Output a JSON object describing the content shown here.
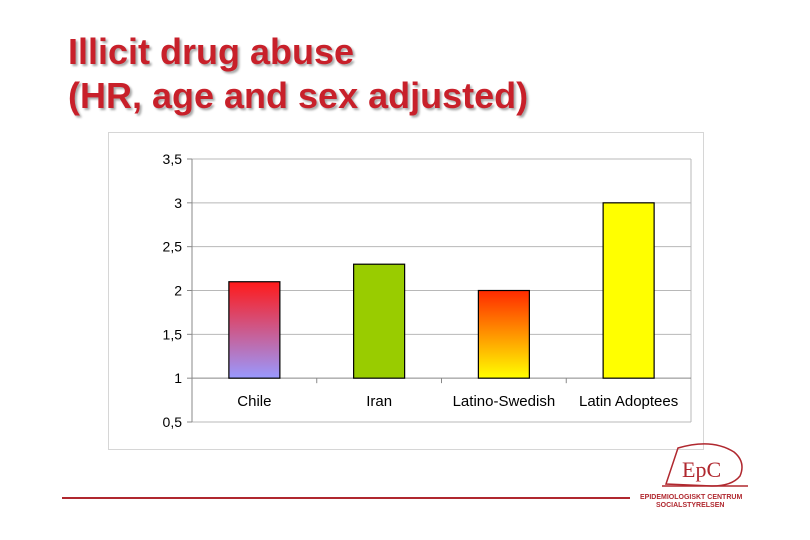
{
  "slide": {
    "title_line1": "Illicit drug abuse",
    "title_line2": "(HR, age and sex adjusted)"
  },
  "colors": {
    "title": "#c8202a",
    "brand": "#b0282f"
  },
  "chart_data": {
    "type": "bar",
    "categories": [
      "Chile",
      "Iran",
      "Latino-Swedish",
      "Latin Adoptees"
    ],
    "values": [
      2.1,
      2.3,
      2.0,
      3.0
    ],
    "baseline": 1,
    "ylim": [
      0.5,
      3.5
    ],
    "yticks": [
      "0,5",
      "1",
      "1,5",
      "2",
      "2,5",
      "3",
      "3,5"
    ],
    "ytick_values": [
      0.5,
      1,
      1.5,
      2,
      2.5,
      3,
      3.5
    ],
    "title": "",
    "xlabel": "",
    "ylabel": "",
    "grid": true,
    "bar_fills": [
      {
        "type": "gradient",
        "top": "#ff1a1a",
        "bottom": "#9999ff"
      },
      {
        "type": "solid",
        "color": "#99cc00"
      },
      {
        "type": "gradient",
        "top": "#ff2a00",
        "bottom": "#ffff00"
      },
      {
        "type": "solid",
        "color": "#ffff00"
      }
    ]
  },
  "logo": {
    "mark": "EpC",
    "line1": "EPIDEMIOLOGISKT CENTRUM",
    "line2": "SOCIALSTYRELSEN"
  }
}
